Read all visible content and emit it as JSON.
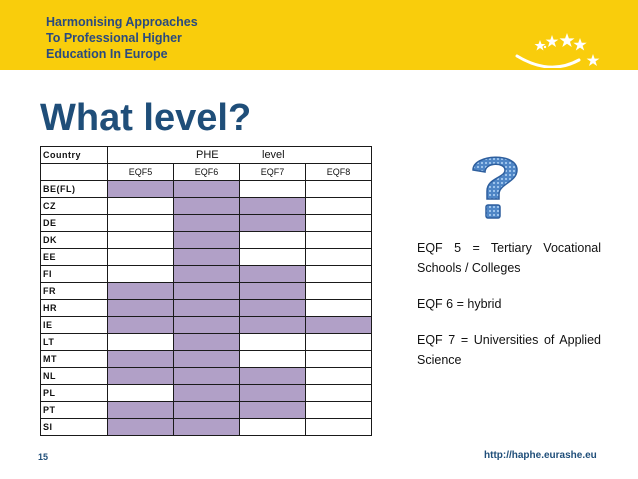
{
  "banner": {
    "line1": "Harmonising Approaches",
    "line2": "To Professional Higher",
    "line3": "Education In Europe",
    "background_color": "#f9cd0c",
    "text_color": "#2a4a7f"
  },
  "title": "What level?",
  "table": {
    "header_country": "Country",
    "header_phe": "PHE",
    "header_level": "level",
    "eqf_columns": [
      "EQF5",
      "EQF6",
      "EQF7",
      "EQF8"
    ],
    "fill_color": "#b1a0c7",
    "rows": [
      {
        "country": "BE(FL)",
        "levels": [
          true,
          true,
          false,
          false
        ]
      },
      {
        "country": "CZ",
        "levels": [
          false,
          true,
          true,
          false
        ]
      },
      {
        "country": "DE",
        "levels": [
          false,
          true,
          true,
          false
        ]
      },
      {
        "country": "DK",
        "levels": [
          false,
          true,
          false,
          false
        ]
      },
      {
        "country": "EE",
        "levels": [
          false,
          true,
          false,
          false
        ]
      },
      {
        "country": "FI",
        "levels": [
          false,
          true,
          true,
          false
        ]
      },
      {
        "country": "FR",
        "levels": [
          true,
          true,
          true,
          false
        ]
      },
      {
        "country": "HR",
        "levels": [
          true,
          true,
          true,
          false
        ]
      },
      {
        "country": "IE",
        "levels": [
          true,
          true,
          true,
          true
        ]
      },
      {
        "country": "LT",
        "levels": [
          false,
          true,
          false,
          false
        ]
      },
      {
        "country": "MT",
        "levels": [
          true,
          true,
          false,
          false
        ]
      },
      {
        "country": "NL",
        "levels": [
          true,
          true,
          true,
          false
        ]
      },
      {
        "country": "PL",
        "levels": [
          false,
          true,
          true,
          false
        ]
      },
      {
        "country": "PT",
        "levels": [
          true,
          true,
          true,
          false
        ]
      },
      {
        "country": "SI",
        "levels": [
          true,
          true,
          false,
          false
        ]
      }
    ]
  },
  "legend": {
    "item1": "EQF 5 = Tertiary Vocational Schools / Colleges",
    "item2": "EQF 6 = hybrid",
    "item3": "EQF 7 = Universities of Applied Science"
  },
  "question_mark_icon": "question-mark-icon",
  "stars_icon": "eu-stars-icon",
  "footer": {
    "page_number": "15",
    "url": "http://haphe.eurashe.eu"
  }
}
